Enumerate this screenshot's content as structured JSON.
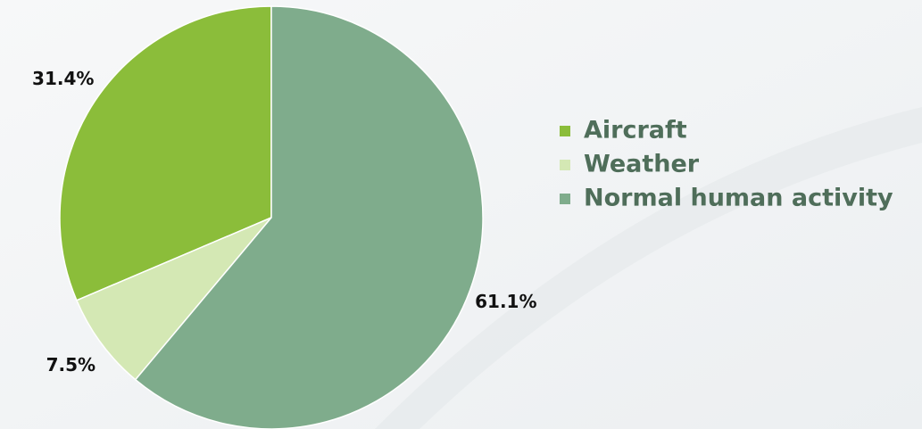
{
  "chart_data": {
    "type": "pie",
    "categories": [
      "Aircraft",
      "Weather",
      "Normal human activity"
    ],
    "values": [
      31.4,
      7.5,
      61.1
    ],
    "value_labels": [
      "31.4%",
      "7.5%",
      "61.1%"
    ],
    "colors": [
      "#8bbd3a",
      "#d4e8b4",
      "#7fac8c"
    ],
    "legend": "right"
  }
}
